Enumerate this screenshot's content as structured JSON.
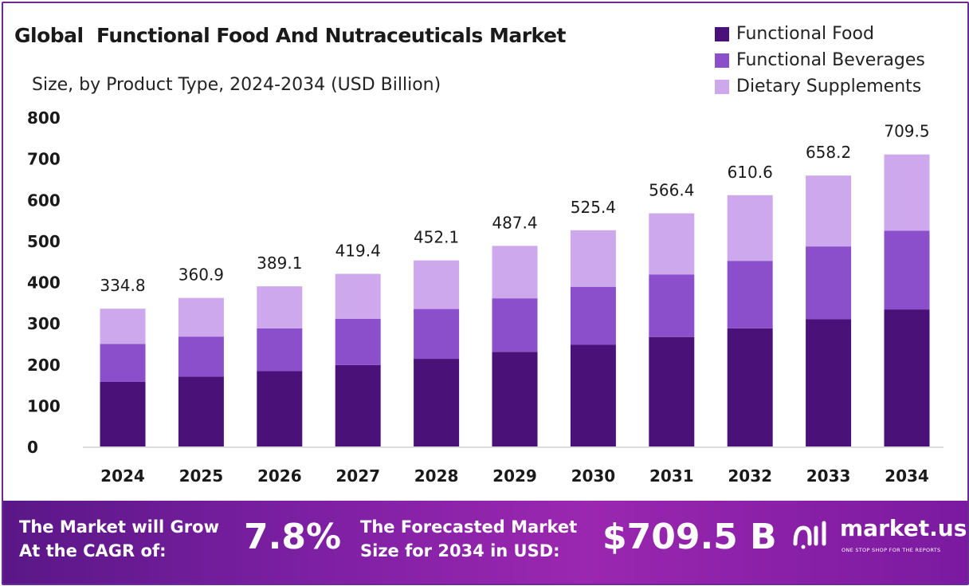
{
  "chart_data": {
    "type": "bar",
    "stacked": true,
    "title": "Global  Functional Food And Nutraceuticals Market",
    "subtitle": "Size, by Product Type, 2024-2034 (USD Billion)",
    "categories": [
      "2024",
      "2025",
      "2026",
      "2027",
      "2028",
      "2029",
      "2030",
      "2031",
      "2032",
      "2033",
      "2034"
    ],
    "series": [
      {
        "name": "Functional Food",
        "color": "#4a1278",
        "values": [
          157,
          170,
          183,
          198,
          213,
          230,
          247,
          266,
          287,
          309,
          333
        ]
      },
      {
        "name": "Functional Beverages",
        "color": "#8b4fcc",
        "values": [
          92,
          97,
          104,
          112,
          121,
          130,
          141,
          152,
          164,
          177,
          191
        ]
      },
      {
        "name": "Dietary Supplements",
        "color": "#cda8ec",
        "values": [
          85.8,
          93.9,
          102.1,
          109.4,
          118.1,
          127.4,
          137.4,
          148.4,
          159.6,
          172.2,
          185.5
        ]
      }
    ],
    "totals": [
      "334.8",
      "360.9",
      "389.1",
      "419.4",
      "452.1",
      "487.4",
      "525.4",
      "566.4",
      "610.6",
      "658.2",
      "709.5"
    ],
    "ylim": [
      0,
      800
    ],
    "yticks": [
      0,
      100,
      200,
      300,
      400,
      500,
      600,
      700,
      800
    ],
    "legend_position": "top-right",
    "grid": false
  },
  "banner": {
    "cagr_label_line1": "The Market will Grow",
    "cagr_label_line2": "At the CAGR of:",
    "cagr_value": "7.8%",
    "forecast_label_line1": "The Forecasted Market",
    "forecast_label_line2": "Size for 2034 in USD:",
    "forecast_value": "$709.5 B",
    "logo_name": "market.us",
    "logo_tagline": "ONE STOP SHOP FOR THE REPORTS",
    "logo_icon": "market-us-logo-icon"
  }
}
